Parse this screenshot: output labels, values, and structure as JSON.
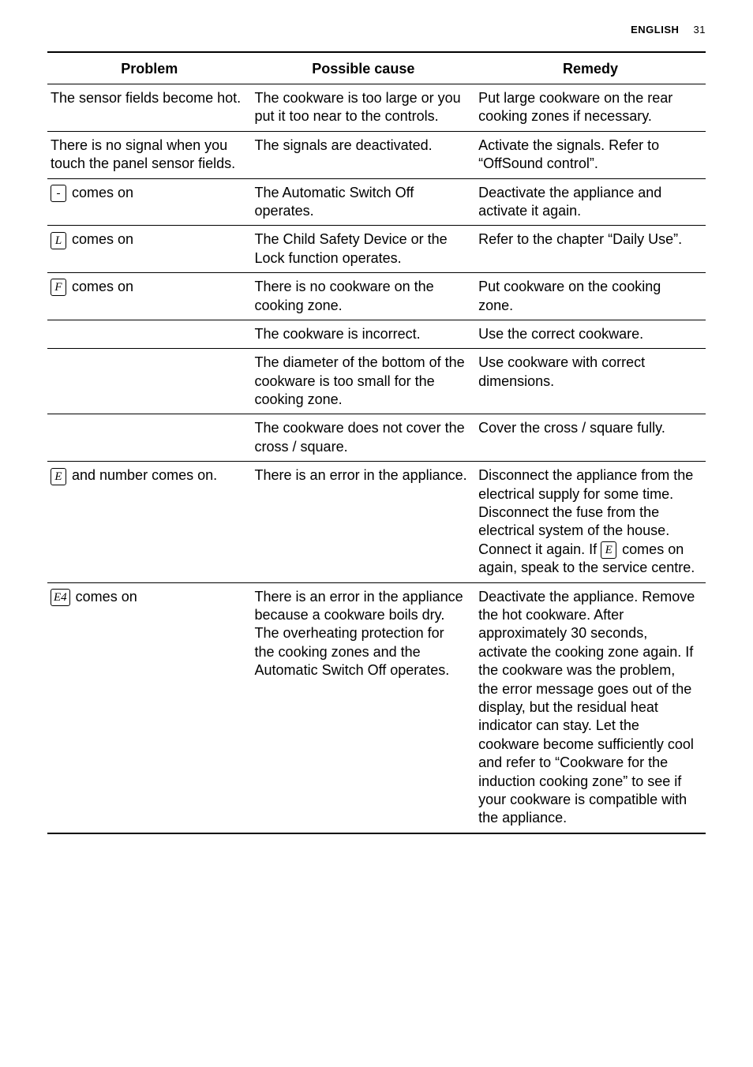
{
  "header": {
    "language": "ENGLISH",
    "page_number": "31"
  },
  "table": {
    "headers": {
      "problem": "Problem",
      "cause": "Possible cause",
      "remedy": "Remedy"
    },
    "rows": [
      {
        "problem_html": "The sensor fields become hot.",
        "cause": "The cookware is too large or you put it too near to the controls.",
        "remedy": "Put large cookware on the rear cooking zones if necessary."
      },
      {
        "problem_html": "There is no signal when you touch the panel sensor fields.",
        "cause": "The signals are deactivated.",
        "remedy": "Activate the signals. Refer to “OffSound control”."
      },
      {
        "problem_html": "<span class=\"sym dash\">-</span> comes on",
        "cause": "The Automatic Switch Off operates.",
        "remedy": "Deactivate the appliance and activate it again."
      },
      {
        "problem_html": "<span class=\"sym\">L</span> comes on",
        "cause": "The Child Safety Device or the Lock function operates.",
        "remedy": "Refer to the chapter “Daily Use”."
      },
      {
        "problem_html": "<span class=\"sym\">F</span> comes on",
        "cause": "There is no cookware on the cooking zone.",
        "remedy": "Put cookware on the cooking zone."
      },
      {
        "problem_html": "",
        "cause": "The cookware is incorrect.",
        "remedy": "Use the correct cookware."
      },
      {
        "problem_html": "",
        "cause": "The diameter of the bottom of the cookware is too small for the cooking zone.",
        "remedy": "Use cookware with correct dimensions."
      },
      {
        "problem_html": "",
        "cause": "The cookware does not cover the cross / square.",
        "remedy": "Cover the cross / square fully."
      },
      {
        "problem_html": "<span class=\"sym\">E</span> and number comes on.",
        "cause": "There is an error in the appliance.",
        "remedy_html": "Disconnect the appliance from the electrical supply for some time. Disconnect the fuse from the electrical system of the house. Connect it again. If <span class=\"sym\">E</span> comes on again, speak to the service centre."
      },
      {
        "problem_html": "<span class=\"sym\">E4</span> comes on",
        "cause": "There is an error in the appliance because a cookware boils dry. The overheating protection for the cooking zones and the Automatic Switch Off operates.",
        "remedy": "Deactivate the appliance. Remove the hot cookware. After approximately 30 seconds, activate the cooking zone again. If the cookware was the problem, the error message goes out of the display, but the residual heat indicator can stay. Let the cookware become sufficiently cool and refer to “Cookware for the induction cooking zone” to see if your cookware is compatible with the appliance."
      }
    ]
  }
}
